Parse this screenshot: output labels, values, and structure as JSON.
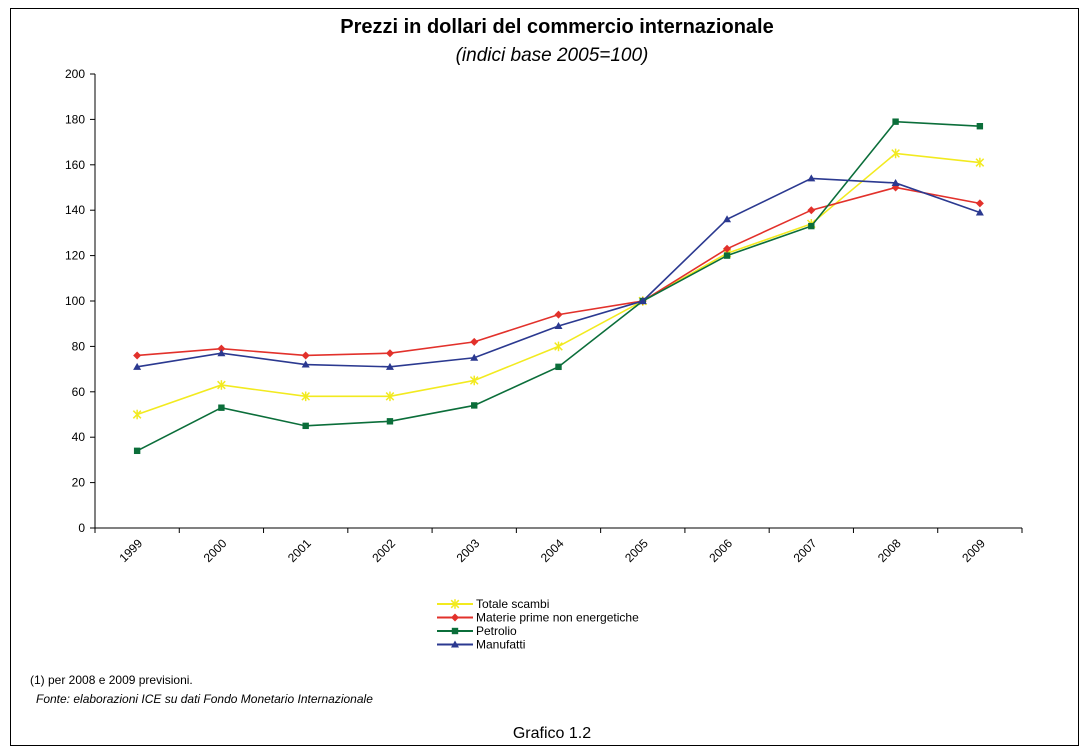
{
  "chart_data": {
    "type": "line",
    "title": "Prezzi in dollari del commercio internazionale",
    "subtitle": "(indici base 2005=100)",
    "categories": [
      "1999",
      "2000",
      "2001",
      "2002",
      "2003",
      "2004",
      "2005",
      "2006",
      "2007",
      "2008",
      "2009"
    ],
    "ylim": [
      0,
      200
    ],
    "yticks": [
      0,
      20,
      40,
      60,
      80,
      100,
      120,
      140,
      160,
      180,
      200
    ],
    "grid": false,
    "legend_position": "bottom",
    "series": [
      {
        "name": "Totale scambi",
        "color": "#f2ea1f",
        "marker": "asterisk",
        "values": [
          50,
          63,
          58,
          58,
          65,
          80,
          100,
          121,
          134,
          165,
          161
        ]
      },
      {
        "name": "Materie prime non energetiche",
        "color": "#e2312b",
        "marker": "diamond",
        "values": [
          76,
          79,
          76,
          77,
          82,
          94,
          100,
          123,
          140,
          150,
          143
        ]
      },
      {
        "name": "Petrolio",
        "color": "#0b6e3a",
        "marker": "square",
        "values": [
          34,
          53,
          45,
          47,
          54,
          71,
          100,
          120,
          133,
          179,
          177
        ]
      },
      {
        "name": "Manufatti",
        "color": "#2b3990",
        "marker": "triangle",
        "values": [
          71,
          77,
          72,
          71,
          75,
          89,
          100,
          136,
          154,
          152,
          139
        ]
      }
    ]
  },
  "notes": {
    "footnote": "(1) per 2008 e 2009 previsioni.",
    "source": "Fonte: elaborazioni ICE su dati Fondo Monetario Internazionale",
    "figure_label": "Grafico 1.2"
  }
}
